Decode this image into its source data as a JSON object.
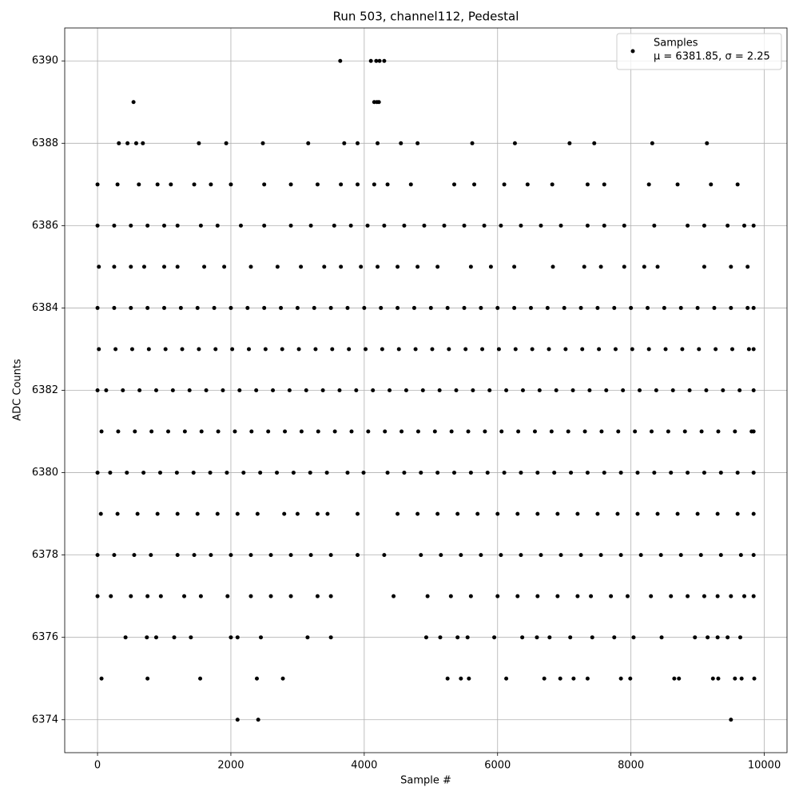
{
  "chart_data": {
    "type": "scatter",
    "title": "Run 503, channel112, Pedestal",
    "xlabel": "Sample #",
    "ylabel": "ADC Counts",
    "xlim": [
      -492,
      10341
    ],
    "ylim": [
      6373.2,
      6390.8
    ],
    "xticks": [
      0,
      2000,
      4000,
      6000,
      8000,
      10000
    ],
    "yticks": [
      6374,
      6376,
      6378,
      6380,
      6382,
      6384,
      6386,
      6388,
      6390
    ],
    "grid": true,
    "legend": "upper right",
    "series": [
      {
        "name": "Samples",
        "color": "#000000",
        "legend_note": "μ = 6381.85, σ = 2.25",
        "x": [
          3640,
          4100,
          4180,
          4230,
          4300,
          540,
          4150,
          4190,
          4220,
          320,
          450,
          580,
          680,
          1520,
          1930,
          2480,
          3160,
          3700,
          3900,
          4200,
          4550,
          4800,
          5620,
          6260,
          7080,
          7450,
          8320,
          9140,
          0,
          300,
          620,
          900,
          1100,
          1450,
          1700,
          2000,
          2500,
          2900,
          3300,
          3650,
          3900,
          4150,
          4350,
          4700,
          5350,
          5650,
          6100,
          6450,
          6820,
          7350,
          7600,
          8270,
          8700,
          9200,
          9600,
          0,
          250,
          500,
          750,
          1000,
          1200,
          1550,
          1800,
          2150,
          2500,
          2900,
          3200,
          3550,
          3800,
          4050,
          4300,
          4600,
          4900,
          5200,
          5500,
          5800,
          6050,
          6350,
          6650,
          6950,
          7350,
          7600,
          7900,
          8350,
          8850,
          9100,
          9450,
          9700,
          9840,
          20,
          250,
          500,
          700,
          1000,
          1200,
          1600,
          1900,
          2300,
          2700,
          3050,
          3400,
          3650,
          3950,
          4200,
          4500,
          4800,
          5100,
          5600,
          5900,
          6250,
          6830,
          7300,
          7550,
          7900,
          8200,
          8400,
          9100,
          9500,
          9750,
          0,
          250,
          500,
          750,
          1000,
          1250,
          1500,
          1750,
          2000,
          2250,
          2500,
          2750,
          3000,
          3250,
          3500,
          3750,
          4000,
          4250,
          4500,
          4750,
          5000,
          5250,
          5500,
          5750,
          6000,
          6250,
          6500,
          6750,
          7000,
          7250,
          7500,
          7750,
          8000,
          8250,
          8500,
          8750,
          9000,
          9250,
          9500,
          9750,
          9840,
          20,
          270,
          520,
          770,
          1020,
          1270,
          1520,
          1770,
          2020,
          2270,
          2520,
          2770,
          3020,
          3270,
          3520,
          3770,
          4020,
          4270,
          4520,
          4770,
          5020,
          5270,
          5520,
          5770,
          6020,
          6270,
          6520,
          6770,
          7020,
          7270,
          7520,
          7770,
          8020,
          8270,
          8520,
          8770,
          9020,
          9270,
          9520,
          9770,
          9840,
          0,
          130,
          380,
          630,
          880,
          1130,
          1380,
          1630,
          1880,
          2130,
          2380,
          2630,
          2880,
          3130,
          3380,
          3630,
          3880,
          4130,
          4380,
          4630,
          4880,
          5130,
          5380,
          5630,
          5880,
          6130,
          6380,
          6630,
          6880,
          7130,
          7380,
          7630,
          7880,
          8130,
          8380,
          8630,
          8880,
          9130,
          9380,
          9630,
          9840,
          60,
          310,
          560,
          810,
          1060,
          1310,
          1560,
          1810,
          2060,
          2310,
          2560,
          2810,
          3060,
          3310,
          3560,
          3810,
          4060,
          4310,
          4560,
          4810,
          5060,
          5310,
          5560,
          5810,
          6060,
          6310,
          6560,
          6810,
          7060,
          7310,
          7560,
          7810,
          8060,
          8310,
          8560,
          8810,
          9060,
          9310,
          9560,
          9810,
          9840,
          0,
          190,
          440,
          690,
          940,
          1190,
          1440,
          1690,
          1940,
          2190,
          2440,
          2690,
          2940,
          3190,
          3440,
          3750,
          3990,
          4350,
          4600,
          4850,
          5100,
          5350,
          5600,
          5850,
          6100,
          6350,
          6600,
          6850,
          7100,
          7350,
          7600,
          7850,
          8100,
          8350,
          8600,
          8850,
          9100,
          9350,
          9600,
          9840,
          50,
          300,
          600,
          900,
          1200,
          1500,
          1800,
          2100,
          2400,
          2800,
          3000,
          3300,
          3450,
          3900,
          4500,
          4800,
          5100,
          5400,
          5700,
          6000,
          6300,
          6600,
          6900,
          7200,
          7500,
          7800,
          8100,
          8400,
          8700,
          9000,
          9300,
          9600,
          9840,
          0,
          250,
          550,
          800,
          1200,
          1450,
          1700,
          2000,
          2300,
          2600,
          2900,
          3200,
          3500,
          3900,
          4300,
          4850,
          5150,
          5450,
          5750,
          6050,
          6350,
          6650,
          6950,
          7250,
          7550,
          7850,
          8150,
          8450,
          8750,
          9050,
          9350,
          9650,
          9840,
          0,
          200,
          500,
          750,
          950,
          1300,
          1550,
          1950,
          2300,
          2600,
          2900,
          3300,
          3500,
          4440,
          4950,
          5300,
          5600,
          6000,
          6300,
          6600,
          6900,
          7200,
          7400,
          7700,
          7950,
          8300,
          8600,
          8850,
          9100,
          9300,
          9500,
          9700,
          9840,
          420,
          740,
          880,
          1150,
          1400,
          2000,
          2100,
          2450,
          3150,
          3500,
          4930,
          5140,
          5400,
          5550,
          5950,
          6370,
          6590,
          6780,
          7090,
          7420,
          7750,
          8040,
          8460,
          8960,
          9150,
          9300,
          9450,
          9640,
          60,
          750,
          1540,
          2390,
          2780,
          5250,
          5450,
          5570,
          6130,
          6700,
          6940,
          7140,
          7350,
          7850,
          7990,
          8650,
          8720,
          9230,
          9310,
          9560,
          9660,
          9850,
          2100,
          2410,
          9500
        ],
        "values": [
          6390,
          6390,
          6390,
          6390,
          6390,
          6389,
          6389,
          6389,
          6389,
          6388,
          6388,
          6388,
          6388,
          6388,
          6388,
          6388,
          6388,
          6388,
          6388,
          6388,
          6388,
          6388,
          6388,
          6388,
          6388,
          6388,
          6388,
          6388,
          6387,
          6387,
          6387,
          6387,
          6387,
          6387,
          6387,
          6387,
          6387,
          6387,
          6387,
          6387,
          6387,
          6387,
          6387,
          6387,
          6387,
          6387,
          6387,
          6387,
          6387,
          6387,
          6387,
          6387,
          6387,
          6387,
          6387,
          6386,
          6386,
          6386,
          6386,
          6386,
          6386,
          6386,
          6386,
          6386,
          6386,
          6386,
          6386,
          6386,
          6386,
          6386,
          6386,
          6386,
          6386,
          6386,
          6386,
          6386,
          6386,
          6386,
          6386,
          6386,
          6386,
          6386,
          6386,
          6386,
          6386,
          6386,
          6386,
          6386,
          6386,
          6385,
          6385,
          6385,
          6385,
          6385,
          6385,
          6385,
          6385,
          6385,
          6385,
          6385,
          6385,
          6385,
          6385,
          6385,
          6385,
          6385,
          6385,
          6385,
          6385,
          6385,
          6385,
          6385,
          6385,
          6385,
          6385,
          6385,
          6385,
          6385,
          6385,
          6384,
          6384,
          6384,
          6384,
          6384,
          6384,
          6384,
          6384,
          6384,
          6384,
          6384,
          6384,
          6384,
          6384,
          6384,
          6384,
          6384,
          6384,
          6384,
          6384,
          6384,
          6384,
          6384,
          6384,
          6384,
          6384,
          6384,
          6384,
          6384,
          6384,
          6384,
          6384,
          6384,
          6384,
          6384,
          6384,
          6384,
          6384,
          6384,
          6384,
          6384,
          6383,
          6383,
          6383,
          6383,
          6383,
          6383,
          6383,
          6383,
          6383,
          6383,
          6383,
          6383,
          6383,
          6383,
          6383,
          6383,
          6383,
          6383,
          6383,
          6383,
          6383,
          6383,
          6383,
          6383,
          6383,
          6383,
          6383,
          6383,
          6383,
          6383,
          6383,
          6383,
          6383,
          6383,
          6383,
          6383,
          6383,
          6383,
          6383,
          6383,
          6383,
          6382,
          6382,
          6382,
          6382,
          6382,
          6382,
          6382,
          6382,
          6382,
          6382,
          6382,
          6382,
          6382,
          6382,
          6382,
          6382,
          6382,
          6382,
          6382,
          6382,
          6382,
          6382,
          6382,
          6382,
          6382,
          6382,
          6382,
          6382,
          6382,
          6382,
          6382,
          6382,
          6382,
          6382,
          6382,
          6382,
          6382,
          6382,
          6382,
          6382,
          6382,
          6381,
          6381,
          6381,
          6381,
          6381,
          6381,
          6381,
          6381,
          6381,
          6381,
          6381,
          6381,
          6381,
          6381,
          6381,
          6381,
          6381,
          6381,
          6381,
          6381,
          6381,
          6381,
          6381,
          6381,
          6381,
          6381,
          6381,
          6381,
          6381,
          6381,
          6381,
          6381,
          6381,
          6381,
          6381,
          6381,
          6381,
          6381,
          6381,
          6381,
          6381,
          6380,
          6380,
          6380,
          6380,
          6380,
          6380,
          6380,
          6380,
          6380,
          6380,
          6380,
          6380,
          6380,
          6380,
          6380,
          6380,
          6380,
          6380,
          6380,
          6380,
          6380,
          6380,
          6380,
          6380,
          6380,
          6380,
          6380,
          6380,
          6380,
          6380,
          6380,
          6380,
          6380,
          6380,
          6380,
          6380,
          6380,
          6380,
          6380,
          6380,
          6379,
          6379,
          6379,
          6379,
          6379,
          6379,
          6379,
          6379,
          6379,
          6379,
          6379,
          6379,
          6379,
          6379,
          6379,
          6379,
          6379,
          6379,
          6379,
          6379,
          6379,
          6379,
          6379,
          6379,
          6379,
          6379,
          6379,
          6379,
          6379,
          6379,
          6379,
          6379,
          6379,
          6378,
          6378,
          6378,
          6378,
          6378,
          6378,
          6378,
          6378,
          6378,
          6378,
          6378,
          6378,
          6378,
          6378,
          6378,
          6378,
          6378,
          6378,
          6378,
          6378,
          6378,
          6378,
          6378,
          6378,
          6378,
          6378,
          6378,
          6378,
          6378,
          6378,
          6378,
          6378,
          6378,
          6377,
          6377,
          6377,
          6377,
          6377,
          6377,
          6377,
          6377,
          6377,
          6377,
          6377,
          6377,
          6377,
          6377,
          6377,
          6377,
          6377,
          6377,
          6377,
          6377,
          6377,
          6377,
          6377,
          6377,
          6377,
          6377,
          6377,
          6377,
          6377,
          6377,
          6377,
          6377,
          6377,
          6376,
          6376,
          6376,
          6376,
          6376,
          6376,
          6376,
          6376,
          6376,
          6376,
          6376,
          6376,
          6376,
          6376,
          6376,
          6376,
          6376,
          6376,
          6376,
          6376,
          6376,
          6376,
          6376,
          6376,
          6376,
          6376,
          6376,
          6376,
          6375,
          6375,
          6375,
          6375,
          6375,
          6375,
          6375,
          6375,
          6375,
          6375,
          6375,
          6375,
          6375,
          6375,
          6375,
          6375,
          6375,
          6375,
          6375,
          6375,
          6375,
          6375,
          6374,
          6374,
          6374
        ]
      }
    ]
  }
}
